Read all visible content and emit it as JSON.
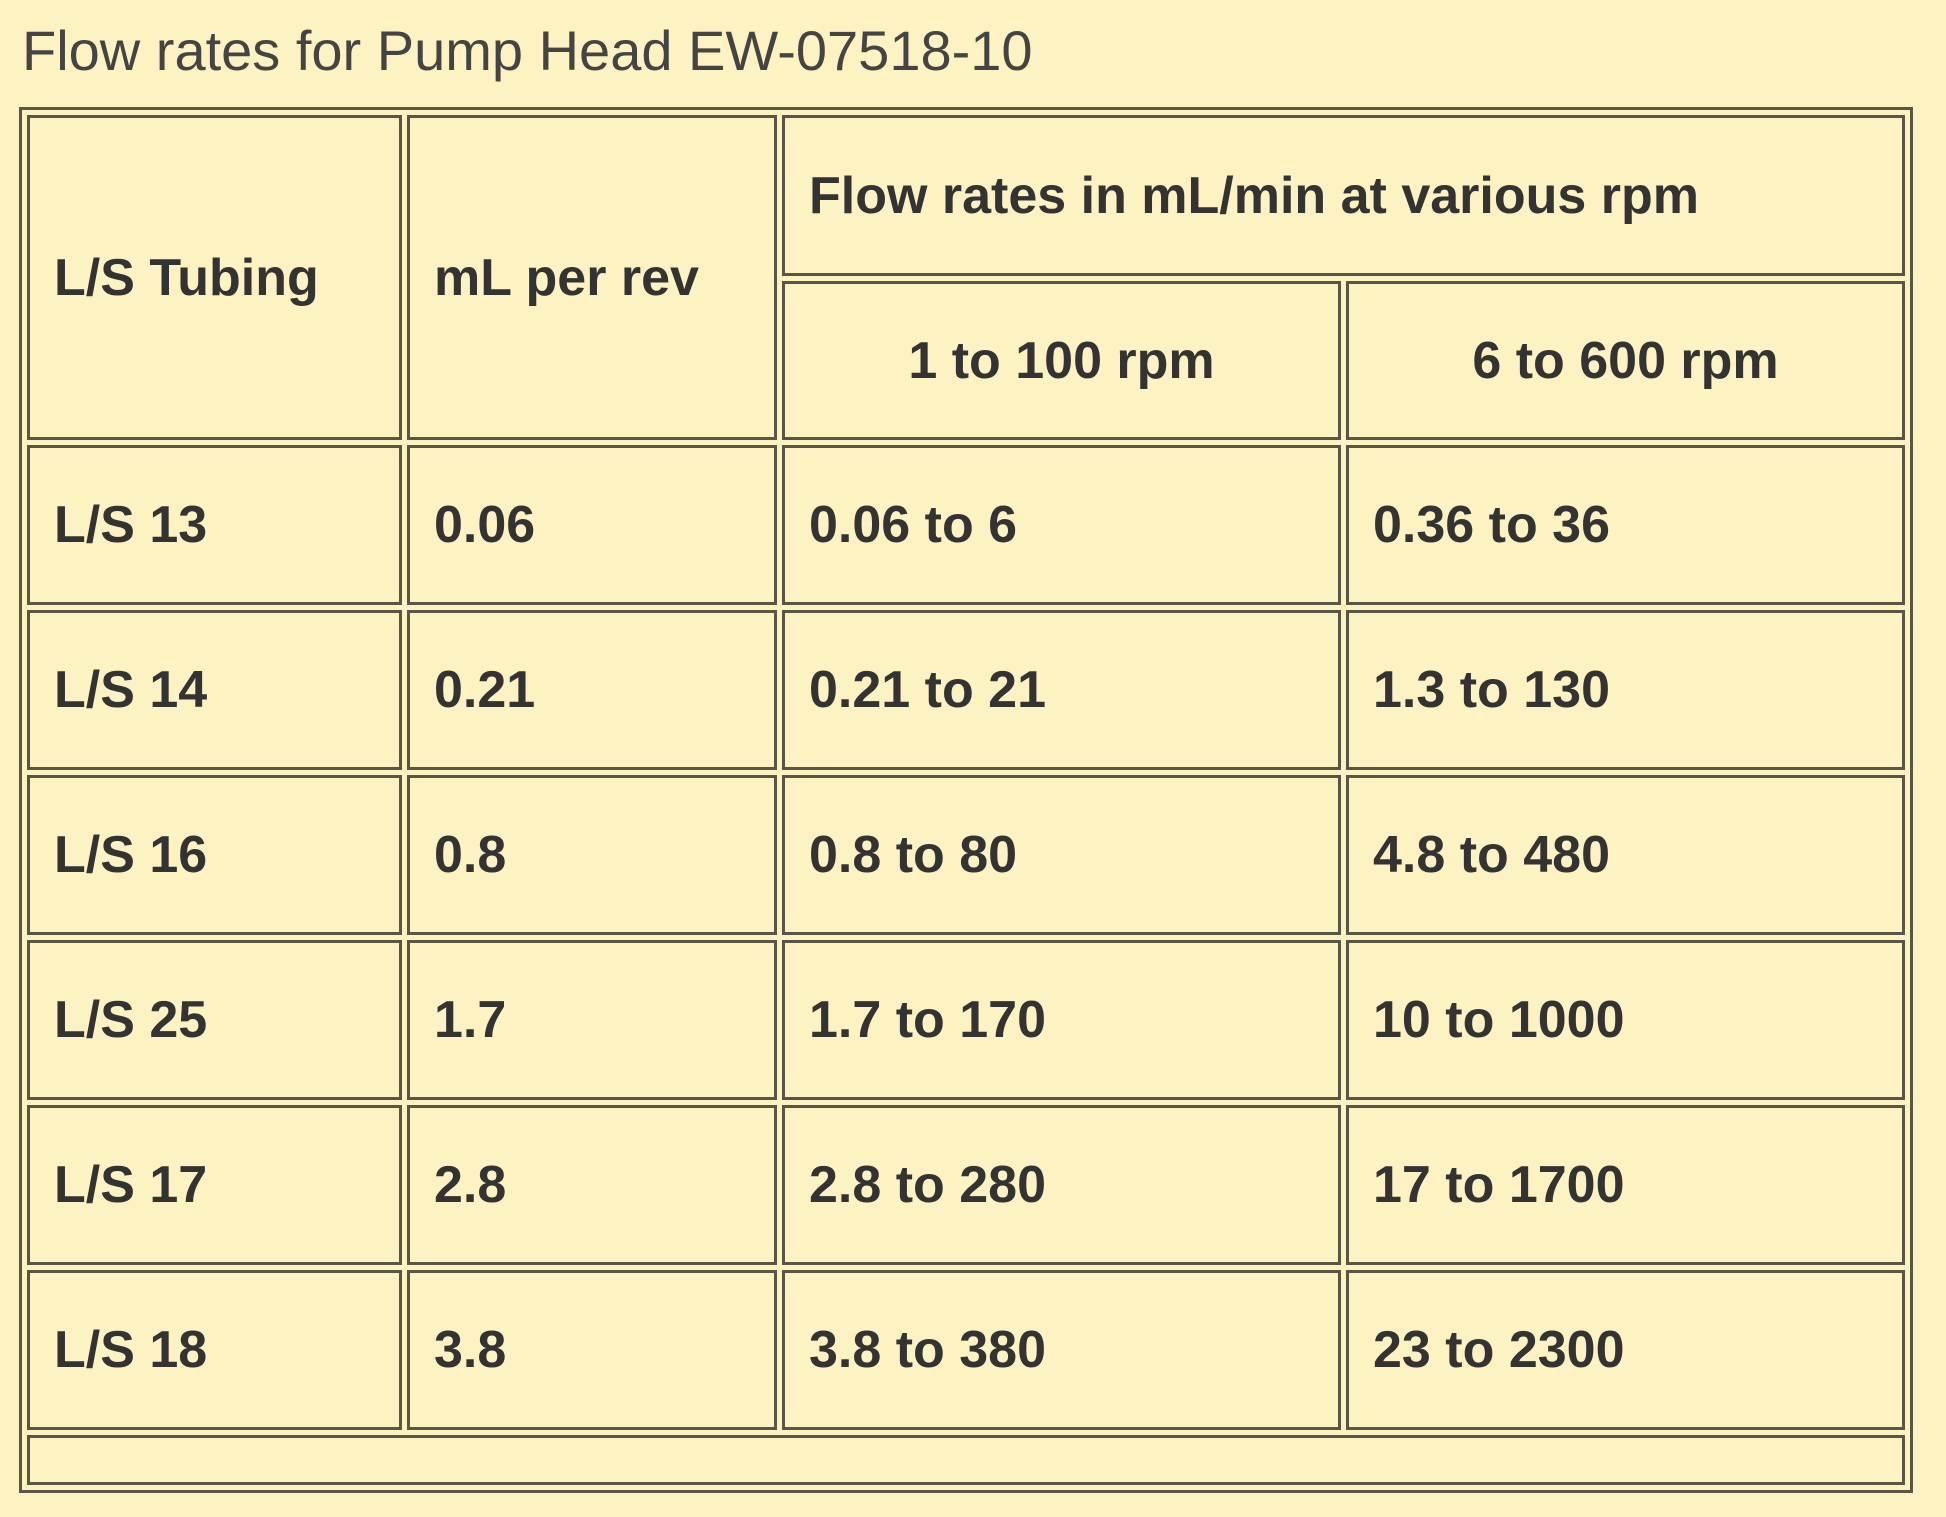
{
  "title": "Flow rates for Pump Head EW-07518-10",
  "table": {
    "header": {
      "columns": [
        "L/S Tubing",
        "mL per rev"
      ],
      "group": "Flow rates in mL/min at various rpm",
      "subcolumns": [
        "1 to 100 rpm",
        "6 to 600 rpm"
      ]
    },
    "rows": [
      [
        "L/S 13",
        "0.06",
        "0.06 to 6",
        "0.36 to 36"
      ],
      [
        "L/S 14",
        "0.21",
        "0.21 to 21",
        "1.3 to 130"
      ],
      [
        "L/S 16",
        "0.8",
        "0.8 to 80",
        "4.8 to 480"
      ],
      [
        "L/S 25",
        "1.7",
        "1.7 to 170",
        "10 to 1000"
      ],
      [
        "L/S 17",
        "2.8",
        "2.8 to 280",
        "17 to 1700"
      ],
      [
        "L/S 18",
        "3.8",
        "3.8 to 380",
        "23 to 2300"
      ]
    ]
  }
}
